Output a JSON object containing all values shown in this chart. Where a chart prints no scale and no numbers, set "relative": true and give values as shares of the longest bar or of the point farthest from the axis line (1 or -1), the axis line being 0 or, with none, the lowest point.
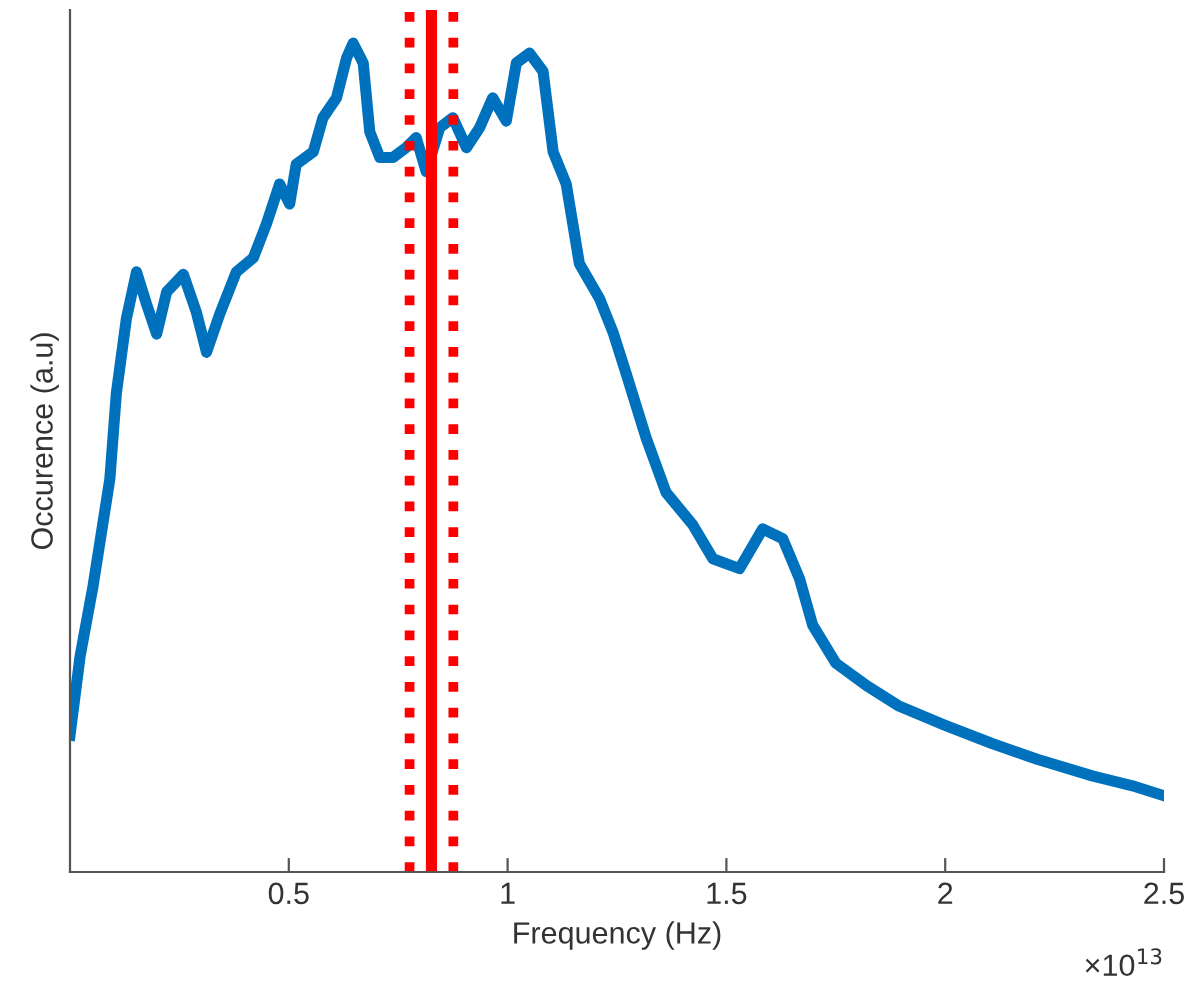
{
  "chart_data": {
    "type": "line",
    "relative": true,
    "xlabel": "Frequency (Hz)",
    "ylabel": "Occurence (a.u)",
    "xlim": [
      0,
      2.5
    ],
    "xticks": [
      0.5,
      1,
      1.5,
      2,
      2.5
    ],
    "annotations": [
      "×10$^{13}$"
    ],
    "grid": false,
    "marker": "none",
    "line_style": "solid",
    "ref_lines": [
      {
        "axis": "x",
        "value": 0.776,
        "color": "#ff0000",
        "line_style": "dotted"
      },
      {
        "axis": "x",
        "value": 0.826,
        "color": "#ff0000",
        "line_style": "solid"
      },
      {
        "axis": "x",
        "value": 0.876,
        "color": "#ff0000",
        "line_style": "dotted"
      }
    ],
    "series": [
      {
        "color": "#0072bd",
        "x": [
          0,
          0.023,
          0.053,
          0.091,
          0.106,
          0.129,
          0.152,
          0.175,
          0.198,
          0.221,
          0.259,
          0.289,
          0.312,
          0.342,
          0.38,
          0.419,
          0.449,
          0.479,
          0.502,
          0.517,
          0.556,
          0.578,
          0.609,
          0.632,
          0.647,
          0.67,
          0.685,
          0.708,
          0.738,
          0.768,
          0.791,
          0.814,
          0.845,
          0.875,
          0.906,
          0.936,
          0.966,
          0.997,
          1.02,
          1.05,
          1.081,
          1.104,
          1.134,
          1.164,
          1.21,
          1.241,
          1.27,
          1.317,
          1.362,
          1.423,
          1.469,
          1.53,
          1.583,
          1.629,
          1.667,
          1.697,
          1.75,
          1.82,
          1.895,
          2.0,
          2.107,
          2.21,
          2.336,
          2.428,
          2.5
        ],
        "values": [
          0.165,
          0.26,
          0.346,
          0.474,
          0.578,
          0.668,
          0.724,
          0.685,
          0.649,
          0.7,
          0.721,
          0.675,
          0.627,
          0.673,
          0.724,
          0.741,
          0.782,
          0.83,
          0.806,
          0.854,
          0.869,
          0.91,
          0.934,
          0.982,
          1.0,
          0.976,
          0.893,
          0.862,
          0.862,
          0.874,
          0.886,
          0.845,
          0.898,
          0.91,
          0.874,
          0.898,
          0.934,
          0.906,
          0.976,
          0.988,
          0.966,
          0.869,
          0.83,
          0.734,
          0.692,
          0.651,
          0.603,
          0.523,
          0.458,
          0.419,
          0.378,
          0.366,
          0.414,
          0.402,
          0.354,
          0.298,
          0.252,
          0.225,
          0.2,
          0.177,
          0.155,
          0.136,
          0.116,
          0.104,
          0.092
        ]
      }
    ]
  }
}
